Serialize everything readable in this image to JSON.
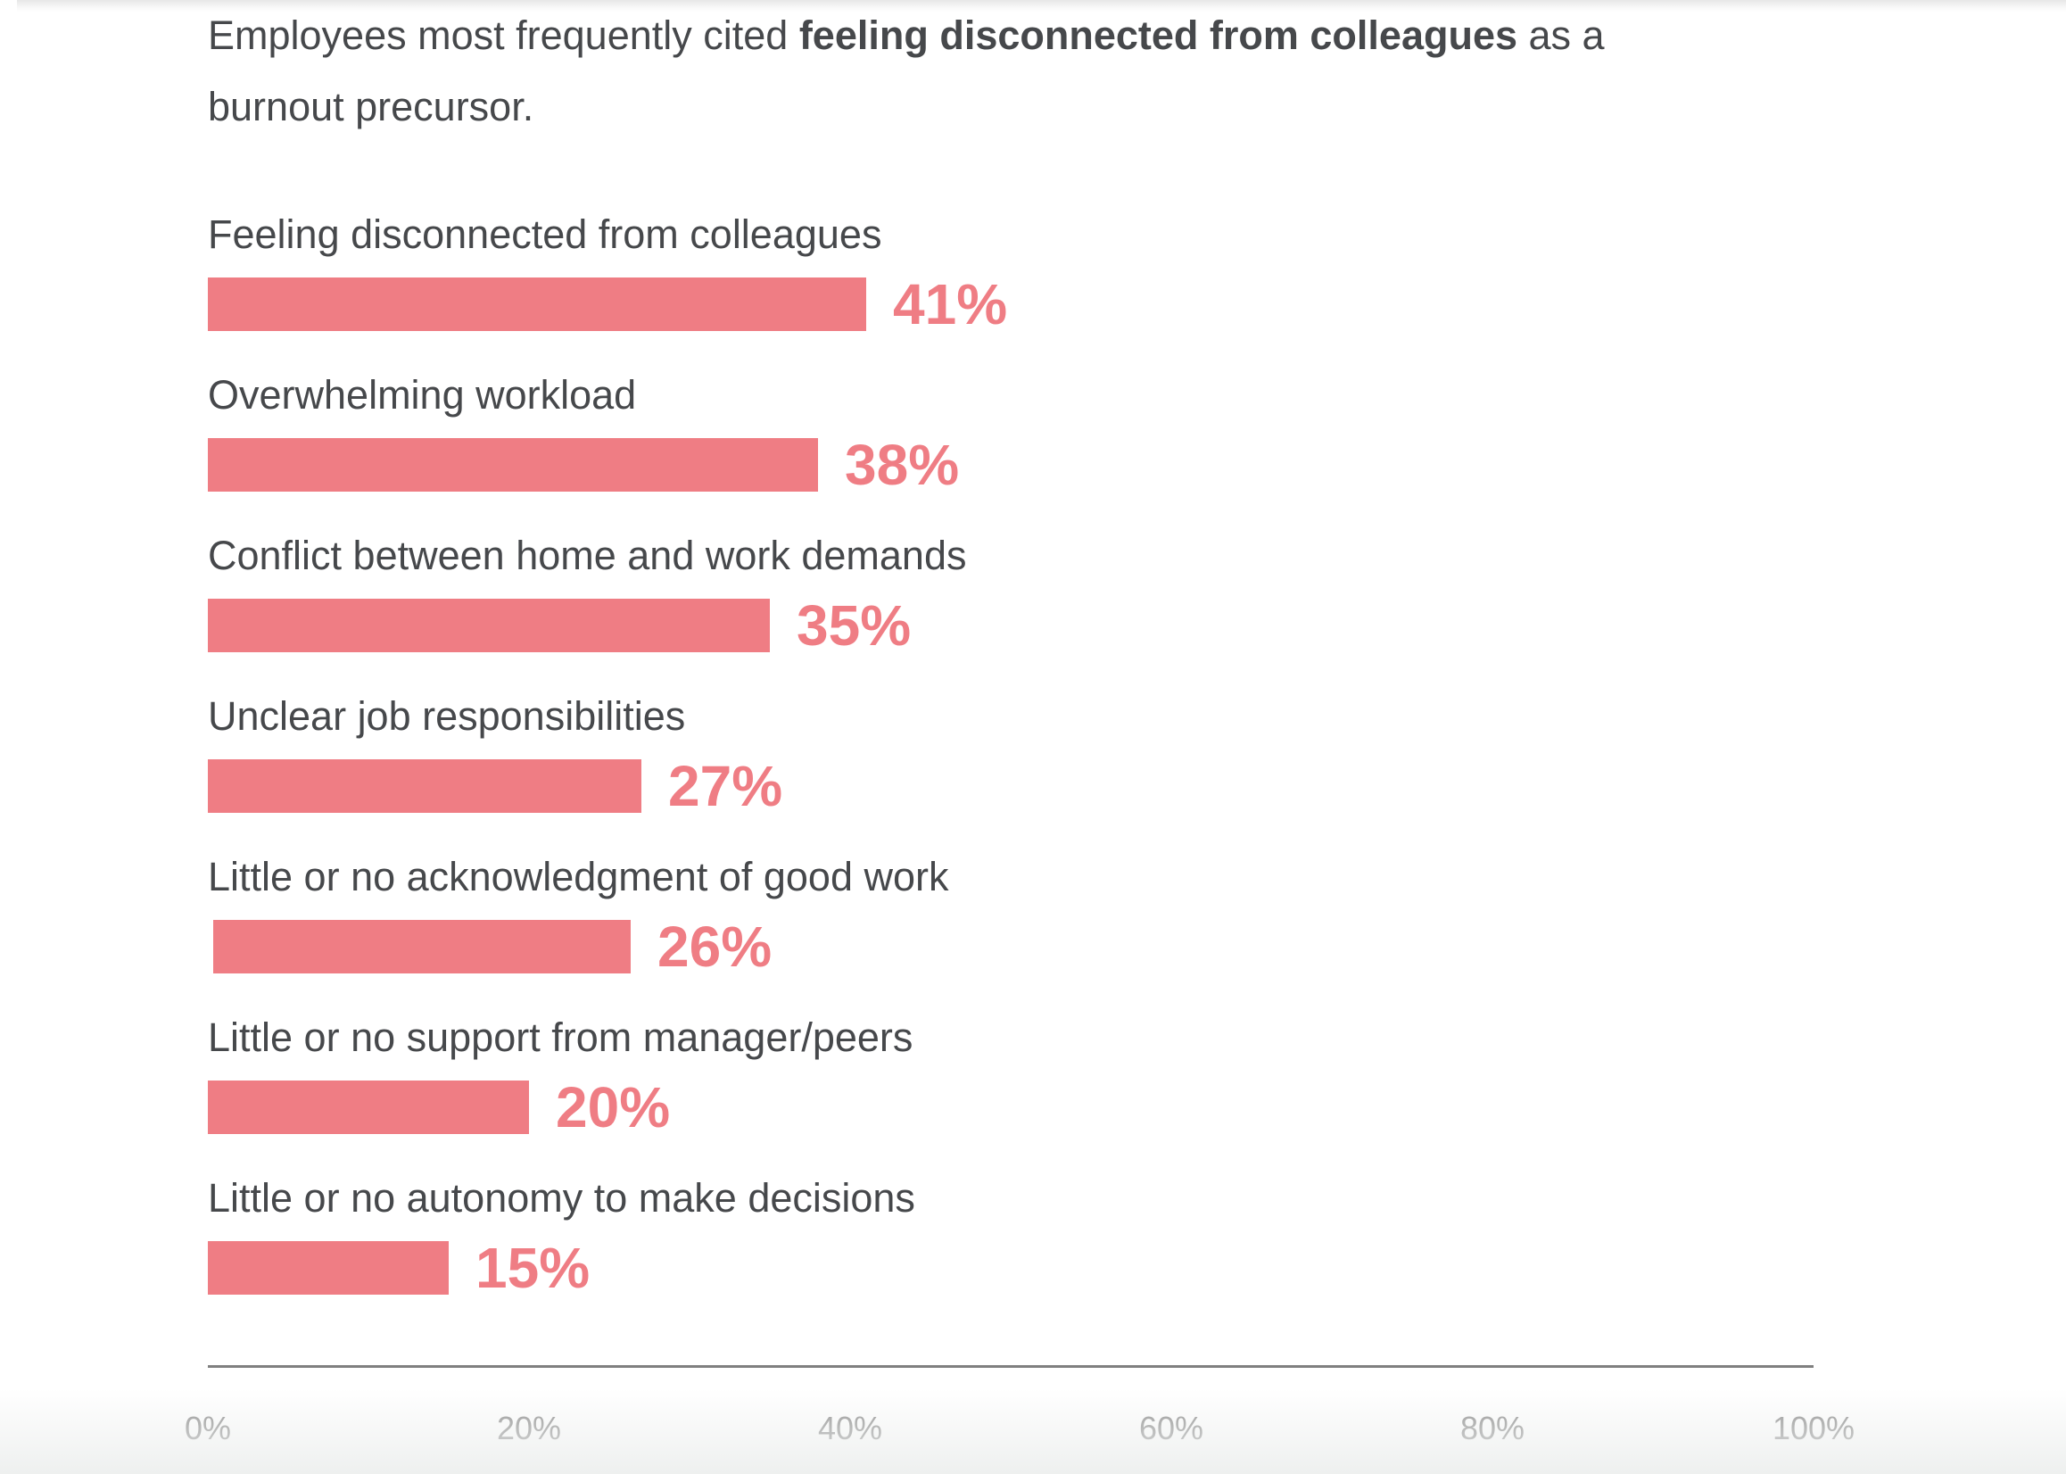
{
  "chart_data": {
    "type": "bar",
    "orientation": "horizontal",
    "title": {
      "full": "Employees most frequently cited feeling disconnected from colleagues as a burnout precursor.",
      "prefix": "Employees most frequently cited ",
      "bold": "feeling disconnected from colleagues",
      "suffix_line1": " as a",
      "line2": "burnout precursor."
    },
    "categories": [
      "Feeling disconnected from colleagues",
      "Overwhelming workload",
      "Conflict between home and work demands",
      "Unclear job responsibilities",
      "Little or no acknowledgment of good work",
      "Little or no support from manager/peers",
      "Little or no autonomy to make decisions"
    ],
    "values": [
      41,
      38,
      35,
      27,
      26,
      20,
      15
    ],
    "value_labels": [
      "41%",
      "38%",
      "35%",
      "27%",
      "26%",
      "20%",
      "15%"
    ],
    "xlabel": "",
    "ylabel": "",
    "xlim": [
      0,
      100
    ],
    "x_ticks": [
      "0%",
      "20%",
      "40%",
      "60%",
      "80%",
      "100%"
    ],
    "grid": false,
    "legend": false,
    "colors": {
      "bar": "#EF7D84",
      "value_label": "#EF7D84",
      "category_label": "#46484B",
      "title": "#46484B",
      "axis_line": "#7F7F7F",
      "tick_label": "#8C8C8C"
    }
  }
}
